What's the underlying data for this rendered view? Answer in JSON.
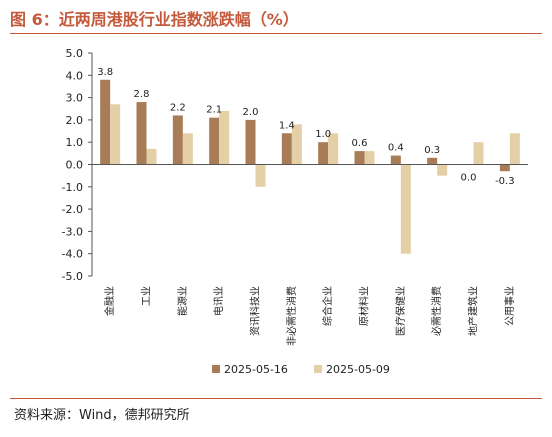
{
  "figure": {
    "title": "图 6：近两周港股行业指数涨跌幅（%）",
    "source": "资料来源：Wind，德邦研究所"
  },
  "chart_data": {
    "type": "bar",
    "categories": [
      "金融业",
      "工业",
      "能源业",
      "电讯业",
      "资讯科技业",
      "非必需性消费",
      "综合企业",
      "原材料业",
      "医疗保健业",
      "必需性消费",
      "地产建筑业",
      "公用事业"
    ],
    "series": [
      {
        "name": "2025-05-16",
        "color": "#a77c56",
        "values": [
          3.8,
          2.8,
          2.2,
          2.1,
          2.0,
          1.4,
          1.0,
          0.6,
          0.4,
          0.3,
          0.0,
          -0.3
        ]
      },
      {
        "name": "2025-05-09",
        "color": "#e4cfa7",
        "values": [
          2.7,
          0.7,
          1.4,
          2.4,
          -1.0,
          1.8,
          1.4,
          0.6,
          -4.0,
          -0.5,
          1.0,
          1.4
        ]
      }
    ],
    "data_labels": [
      "3.8",
      "2.8",
      "2.2",
      "2.1",
      "2.0",
      "1.4",
      "1.0",
      "0.6",
      "0.4",
      "0.3",
      "0.0",
      "-0.3"
    ],
    "yticks": [
      "5.0",
      "4.0",
      "3.0",
      "2.0",
      "1.0",
      "0.0",
      "-1.0",
      "-2.0",
      "-3.0",
      "-4.0",
      "-5.0"
    ],
    "ylim": [
      -5,
      5
    ],
    "xlabel": "",
    "ylabel": "",
    "grid": false,
    "legend": "bottom-center"
  }
}
